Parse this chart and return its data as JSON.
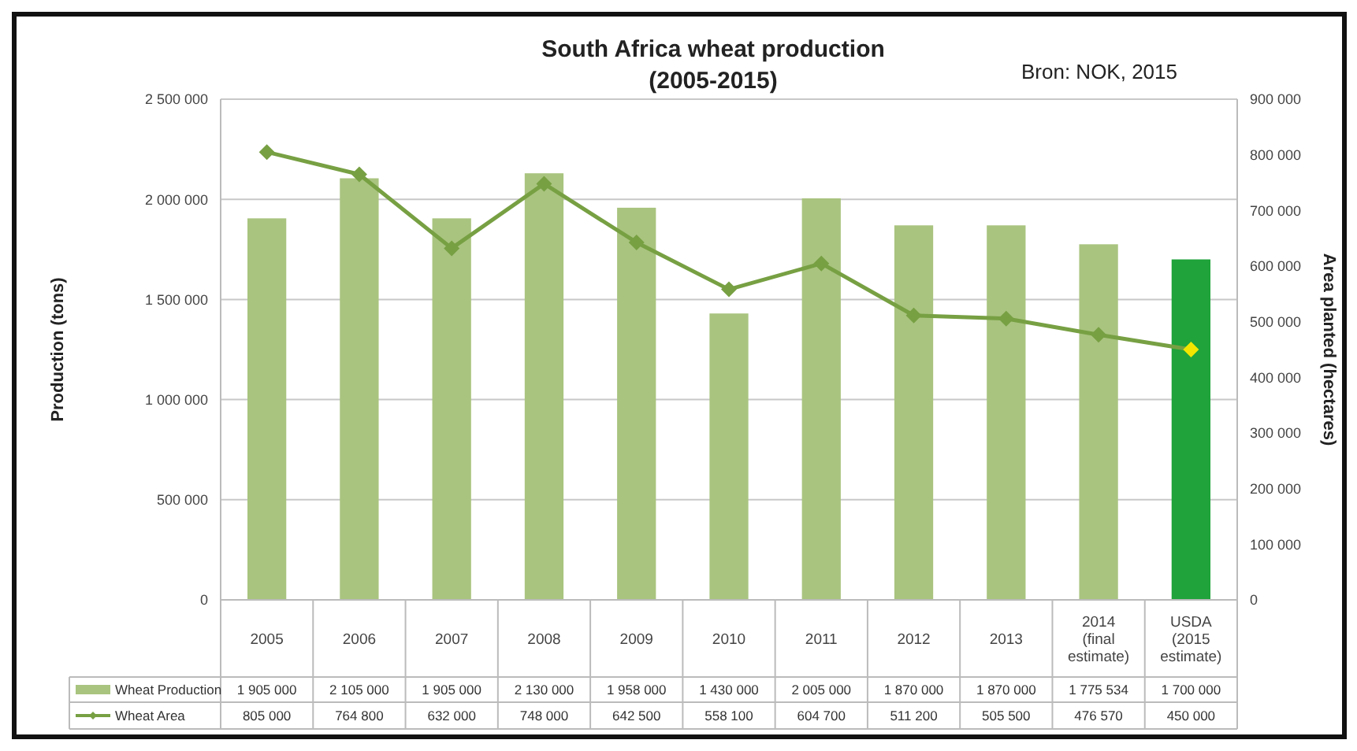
{
  "chart_data": {
    "type": "bar",
    "title": "South Africa wheat production\n(2005-2015)",
    "annotations": [
      "Bron: NOK, 2015"
    ],
    "ylabel": "Production (tons)",
    "y2label": "Area planted (hectares)",
    "categories": [
      "2005",
      "2006",
      "2007",
      "2008",
      "2009",
      "2010",
      "2011",
      "2012",
      "2013",
      "2014 (final estimate)",
      "USDA (2015 estimate)"
    ],
    "series": [
      {
        "name": "Wheat Production",
        "color": "#a9c47f",
        "colors": [
          "#a9c47f",
          "#a9c47f",
          "#a9c47f",
          "#a9c47f",
          "#a9c47f",
          "#a9c47f",
          "#a9c47f",
          "#a9c47f",
          "#a9c47f",
          "#a9c47f",
          "#1fa33a"
        ],
        "values": [
          1905000,
          2105000,
          1905000,
          2130000,
          1958000,
          1430000,
          2005000,
          1870000,
          1870000,
          1775534,
          1700000
        ],
        "value_labels": [
          "1 905 000",
          "2 105 000",
          "1 905 000",
          "2 130 000",
          "1 958 000",
          "1 430 000",
          "2 005 000",
          "1 870 000",
          "1 870 000",
          "1 775 534",
          "1 700 000"
        ]
      },
      {
        "name": "Wheat Area",
        "type": "line",
        "axis": "y2",
        "color": "#77a043",
        "colors": [
          "#77a043",
          "#77a043",
          "#77a043",
          "#77a043",
          "#77a043",
          "#77a043",
          "#77a043",
          "#77a043",
          "#77a043",
          "#77a043",
          "#f2e600"
        ],
        "marker": "diamond",
        "line_style": "solid",
        "values": [
          805000,
          764800,
          632000,
          748000,
          642500,
          558100,
          604700,
          511200,
          505500,
          476570,
          450000
        ],
        "value_labels": [
          "805 000",
          "764 800",
          "632 000",
          "748 000",
          "642 500",
          "558 100",
          "604 700",
          "511 200",
          "505 500",
          "476 570",
          "450 000"
        ]
      }
    ],
    "ylim": [
      0,
      2500000
    ],
    "yticks": [
      {
        "value": 0,
        "label": "0"
      },
      {
        "value": 500000,
        "label": "500 000"
      },
      {
        "value": 1000000,
        "label": "1 000 000"
      },
      {
        "value": 1500000,
        "label": "1 500 000"
      },
      {
        "value": 2000000,
        "label": "2 000 000"
      },
      {
        "value": 2500000,
        "label": "2 500 000"
      }
    ],
    "y2lim": [
      0,
      900000
    ],
    "y2ticks": [
      {
        "value": 0,
        "label": "0"
      },
      {
        "value": 100000,
        "label": "100 000"
      },
      {
        "value": 200000,
        "label": "200 000"
      },
      {
        "value": 300000,
        "label": "300 000"
      },
      {
        "value": 400000,
        "label": "400 000"
      },
      {
        "value": 500000,
        "label": "500 000"
      },
      {
        "value": 600000,
        "label": "600 000"
      },
      {
        "value": 700000,
        "label": "700 000"
      },
      {
        "value": 800000,
        "label": "800 000"
      },
      {
        "value": 900000,
        "label": "900 000"
      }
    ],
    "grid": "y",
    "legend": "bottom",
    "data_labels": true
  }
}
